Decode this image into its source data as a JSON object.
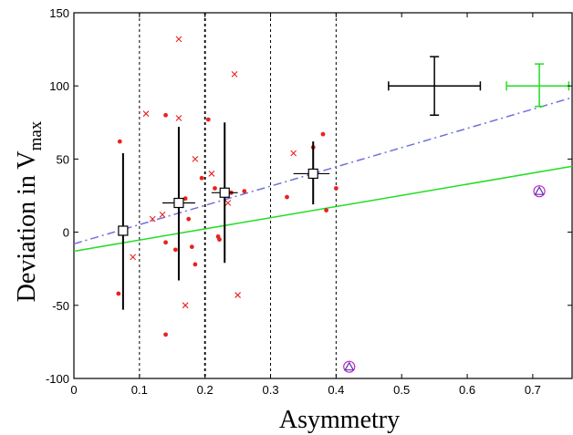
{
  "chart_data": {
    "type": "scatter",
    "title": "",
    "xlabel": "Asymmetry",
    "ylabel": "Deviation in V",
    "ylabel_sub": "max",
    "xlim": [
      0,
      0.76
    ],
    "ylim": [
      -100,
      150
    ],
    "x_ticks": [
      0,
      0.1,
      0.2,
      0.3,
      0.4,
      0.5,
      0.6,
      0.7
    ],
    "x_tick_labels": [
      "0",
      "0.1",
      "0.2",
      "0.3",
      "0.4",
      "0.5",
      "0.6",
      "0.7"
    ],
    "y_ticks": [
      -100,
      -50,
      0,
      50,
      100,
      150
    ],
    "y_tick_labels": [
      "-100",
      "-50",
      "0",
      "50",
      "100",
      "150"
    ],
    "grid": false,
    "vertical_dashed_lines": [
      0.1,
      0.2,
      0.3,
      0.4
    ],
    "colors": {
      "dots": "#e8231e",
      "crosses": "#e8231e",
      "binned": "#000000",
      "solid_fit": "#22dd22",
      "dashdot_fit": "#7070dd",
      "triangles": "#cc22cc",
      "error_black": "#000000",
      "error_green": "#22dd22"
    },
    "series": [
      {
        "marker": "dot",
        "points": [
          [
            0.068,
            -42
          ],
          [
            0.07,
            62
          ],
          [
            0.14,
            -70
          ],
          [
            0.14,
            80
          ],
          [
            0.14,
            -7
          ],
          [
            0.155,
            -12
          ],
          [
            0.17,
            23
          ],
          [
            0.175,
            9
          ],
          [
            0.18,
            -10
          ],
          [
            0.185,
            -22
          ],
          [
            0.195,
            37
          ],
          [
            0.205,
            77
          ],
          [
            0.215,
            30
          ],
          [
            0.22,
            -3
          ],
          [
            0.222,
            -5
          ],
          [
            0.24,
            27
          ],
          [
            0.26,
            28
          ],
          [
            0.325,
            24
          ],
          [
            0.365,
            58
          ],
          [
            0.38,
            67
          ],
          [
            0.385,
            15
          ],
          [
            0.4,
            30
          ]
        ]
      },
      {
        "marker": "cross",
        "points": [
          [
            0.09,
            -17
          ],
          [
            0.11,
            81
          ],
          [
            0.12,
            9
          ],
          [
            0.135,
            12
          ],
          [
            0.16,
            132
          ],
          [
            0.16,
            78
          ],
          [
            0.17,
            -50
          ],
          [
            0.185,
            50
          ],
          [
            0.21,
            40
          ],
          [
            0.235,
            20
          ],
          [
            0.245,
            108
          ],
          [
            0.25,
            -43
          ],
          [
            0.335,
            54
          ],
          [
            0.365,
            40
          ]
        ]
      },
      {
        "marker": "binned",
        "points": [
          {
            "x": 0.075,
            "y": 1,
            "y_low": -53,
            "y_high": 54,
            "x_low": 0.075,
            "x_high": 0.075
          },
          {
            "x": 0.16,
            "y": 20,
            "y_low": -33,
            "y_high": 72,
            "x_low": 0.135,
            "x_high": 0.185
          },
          {
            "x": 0.23,
            "y": 27,
            "y_low": -21,
            "y_high": 75,
            "x_low": 0.21,
            "x_high": 0.25
          },
          {
            "x": 0.365,
            "y": 40,
            "y_low": 19,
            "y_high": 62,
            "x_low": 0.335,
            "x_high": 0.39
          }
        ]
      },
      {
        "marker": "triangle",
        "points": [
          [
            0.42,
            -92
          ],
          [
            0.71,
            28
          ]
        ]
      }
    ],
    "fit_lines": [
      {
        "style": "solid",
        "x": [
          0,
          0.76
        ],
        "y": [
          -13,
          45
        ]
      },
      {
        "style": "dashdot",
        "x": [
          0,
          0.76
        ],
        "y": [
          -8,
          92
        ]
      }
    ],
    "error_markers": [
      {
        "x": 0.55,
        "y": 100,
        "x_low": 0.48,
        "x_high": 0.62,
        "y_low": 80,
        "y_high": 120,
        "style": "black"
      },
      {
        "x": 0.71,
        "y": 100,
        "x_low": 0.66,
        "x_high": 0.755,
        "y_low": 86,
        "y_high": 115,
        "style": "green"
      }
    ]
  }
}
